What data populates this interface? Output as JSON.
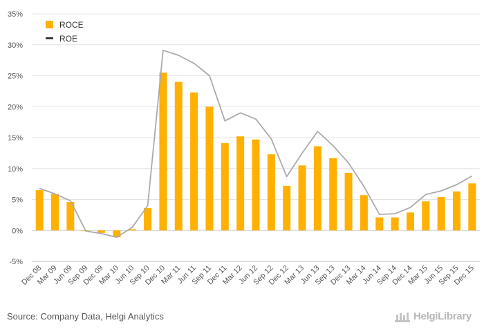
{
  "chart_data": {
    "type": "bar",
    "categories": [
      "Dec 08",
      "Mar 09",
      "Jun 09",
      "Sep 09",
      "Dec 09",
      "Mar 10",
      "Jun 10",
      "Sep 10",
      "Dec 10",
      "Mar 11",
      "Jun 11",
      "Sep 11",
      "Dec 11",
      "Mar 12",
      "Jun 12",
      "Sep 12",
      "Dec 12",
      "Mar 13",
      "Jun 13",
      "Sep 13",
      "Dec 13",
      "Mar 14",
      "Jun 14",
      "Sep 14",
      "Dec 14",
      "Mar 15",
      "Jun 15",
      "Sep 15",
      "Dec 15"
    ],
    "series": [
      {
        "name": "ROCE",
        "kind": "bar",
        "color": "#ffb000",
        "values": [
          6.5,
          5.9,
          4.6,
          -0.1,
          -0.4,
          -1.1,
          0.2,
          3.6,
          25.5,
          24.0,
          22.3,
          20.0,
          14.1,
          15.2,
          14.7,
          12.3,
          7.2,
          10.5,
          13.6,
          11.7,
          9.3,
          5.7,
          2.1,
          2.1,
          2.9,
          4.7,
          5.4,
          6.3,
          7.6
        ]
      },
      {
        "name": "ROE",
        "kind": "line",
        "color": "#aaaaaa",
        "values": [
          6.8,
          5.9,
          4.8,
          -0.1,
          -0.5,
          -1.1,
          0.5,
          4.0,
          29.1,
          28.3,
          27.0,
          25.0,
          17.7,
          19.0,
          18.0,
          14.8,
          8.7,
          12.5,
          16.0,
          13.7,
          10.9,
          7.1,
          2.6,
          2.7,
          3.7,
          5.8,
          6.4,
          7.4,
          8.8
        ]
      }
    ],
    "ylim": [
      -5,
      35
    ],
    "yticks": [
      -5,
      0,
      5,
      10,
      15,
      20,
      25,
      30,
      35
    ],
    "ytick_labels": [
      "-5%",
      "0%",
      "5%",
      "10%",
      "15%",
      "20%",
      "25%",
      "30%",
      "35%"
    ],
    "grid": true,
    "legend_position": "top-left"
  },
  "legend": {
    "roce_label": "ROCE",
    "roe_label": "ROE"
  },
  "footer": {
    "source": "Source: Company Data, Helgi Analytics",
    "brand": "HelgiLibrary"
  }
}
